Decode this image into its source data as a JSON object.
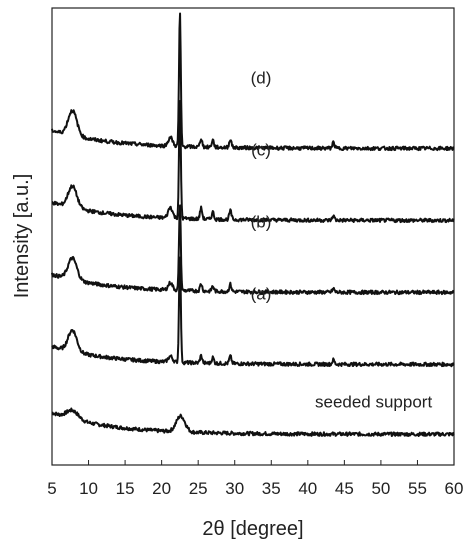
{
  "chart_data": {
    "type": "line",
    "xlabel": "2θ [degree]",
    "ylabel": "Intensity [a.u.]",
    "xlim": [
      5,
      60
    ],
    "xticks": [
      5,
      10,
      15,
      20,
      25,
      30,
      35,
      40,
      45,
      50,
      55,
      60
    ],
    "y_tick_labels": "none",
    "grid": false,
    "line_color": "#111111",
    "series": [
      {
        "name": "seeded support",
        "offset": 0.0,
        "baseline": 0.08,
        "decay": 0.3,
        "peaks": [
          [
            7.8,
            0.12,
            0.8
          ],
          [
            22.6,
            0.22,
            0.6
          ]
        ]
      },
      {
        "name": "(a)",
        "offset": 1.0,
        "baseline": 0.05,
        "decay": 0.25,
        "peaks": [
          [
            7.8,
            0.3,
            0.6
          ],
          [
            21.2,
            0.08,
            0.3
          ],
          [
            22.5,
            1.5,
            0.12
          ],
          [
            25.4,
            0.1,
            0.15
          ],
          [
            27.0,
            0.08,
            0.15
          ],
          [
            29.4,
            0.1,
            0.15
          ],
          [
            43.5,
            0.06,
            0.15
          ]
        ]
      },
      {
        "name": "(b)",
        "offset": 2.0,
        "baseline": 0.05,
        "decay": 0.25,
        "peaks": [
          [
            7.8,
            0.3,
            0.6
          ],
          [
            21.2,
            0.1,
            0.3
          ],
          [
            22.5,
            1.2,
            0.12
          ],
          [
            25.4,
            0.1,
            0.15
          ],
          [
            27.0,
            0.07,
            0.15
          ],
          [
            29.4,
            0.1,
            0.15
          ],
          [
            43.5,
            0.05,
            0.15
          ]
        ]
      },
      {
        "name": "(c)",
        "offset": 3.0,
        "baseline": 0.05,
        "decay": 0.25,
        "peaks": [
          [
            7.8,
            0.3,
            0.6
          ],
          [
            21.2,
            0.15,
            0.3
          ],
          [
            22.5,
            1.65,
            0.12
          ],
          [
            25.4,
            0.15,
            0.15
          ],
          [
            27.0,
            0.1,
            0.15
          ],
          [
            29.4,
            0.12,
            0.15
          ],
          [
            43.5,
            0.06,
            0.15
          ]
        ]
      },
      {
        "name": "(d)",
        "offset": 4.0,
        "baseline": 0.05,
        "decay": 0.25,
        "peaks": [
          [
            7.8,
            0.35,
            0.6
          ],
          [
            21.2,
            0.12,
            0.3
          ],
          [
            22.5,
            1.85,
            0.12
          ],
          [
            25.4,
            0.12,
            0.15
          ],
          [
            27.0,
            0.1,
            0.15
          ],
          [
            29.4,
            0.12,
            0.15
          ],
          [
            43.5,
            0.08,
            0.15
          ]
        ]
      }
    ]
  }
}
